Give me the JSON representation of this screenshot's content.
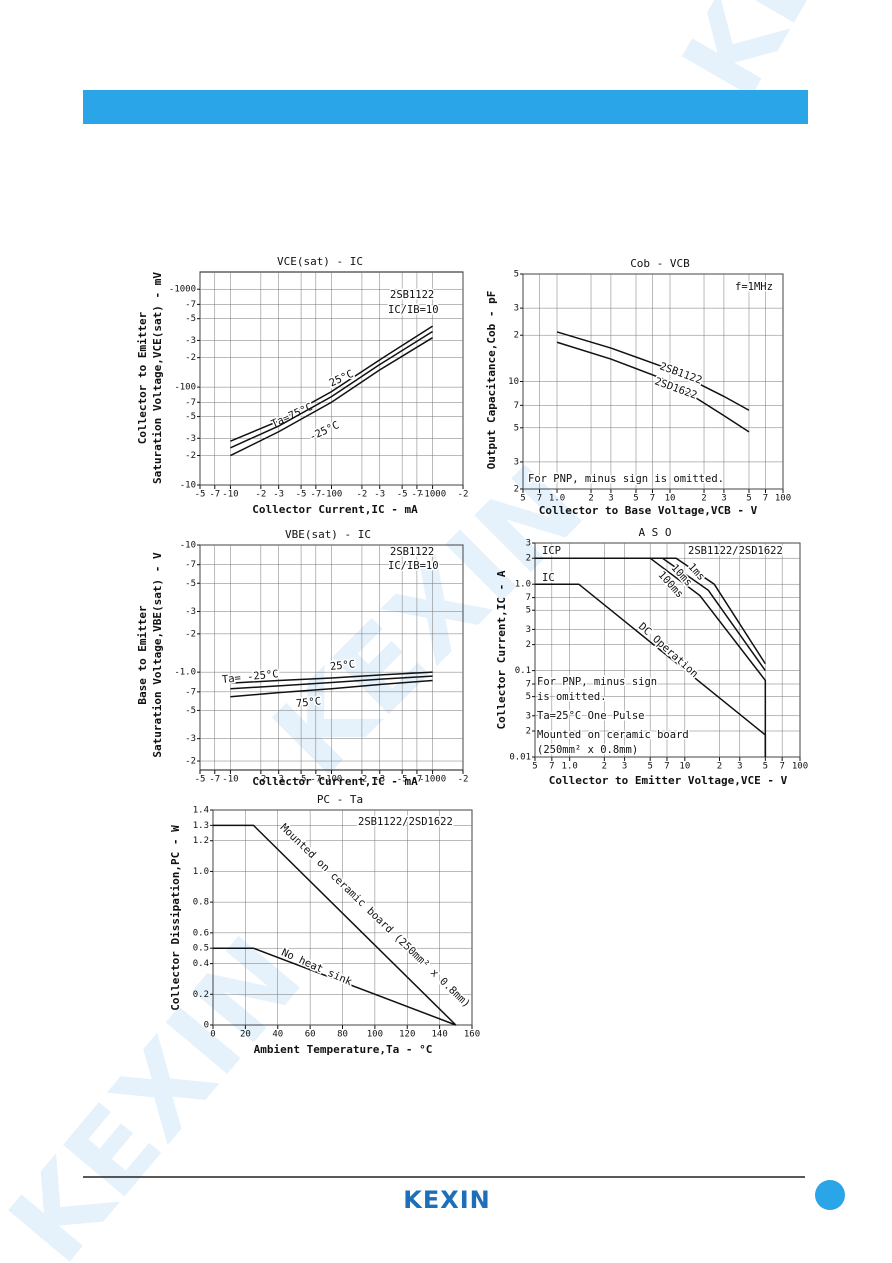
{
  "footer": {
    "logo": "KEXIN"
  },
  "watermark": "KEXIN",
  "chart_data": [
    {
      "type": "line",
      "title": "VCE(sat) - IC",
      "ylabel": [
        "Collector to Emitter",
        "Saturation Voltage,VCE(sat) - mV"
      ],
      "xlabel": "Collector Current,IC - mA",
      "xscale": "log",
      "yscale": "log",
      "grid": true,
      "xlim": [
        -5,
        -2000
      ],
      "ylim": [
        -10,
        -1500
      ],
      "xticks": [
        -5,
        -7,
        -10,
        {
          "value": -20,
          "label": "-2"
        },
        {
          "value": -30,
          "label": "-3"
        },
        {
          "value": -50,
          "label": "-5"
        },
        {
          "value": -70,
          "label": "-7"
        },
        -100,
        {
          "value": -200,
          "label": "-2"
        },
        {
          "value": -300,
          "label": "-3"
        },
        {
          "value": -500,
          "label": "-5"
        },
        {
          "value": -700,
          "label": "-7"
        },
        -1000,
        {
          "value": -2000,
          "label": "-2"
        }
      ],
      "yticks": [
        -1000,
        {
          "value": -700,
          "label": "-7"
        },
        {
          "value": -500,
          "label": "-5"
        },
        {
          "value": -300,
          "label": "-3"
        },
        {
          "value": -200,
          "label": "-2"
        },
        -100,
        {
          "value": -70,
          "label": "-7"
        },
        {
          "value": -50,
          "label": "-5"
        },
        {
          "value": -30,
          "label": "-3"
        },
        {
          "value": -20,
          "label": "-2"
        },
        -10
      ],
      "annotations": [
        "2SB1122",
        "IC/IB=10"
      ],
      "series": [
        {
          "name": "Ta=75°C",
          "color": "#111111",
          "x": [
            -10,
            -30,
            -100,
            -300,
            -1000
          ],
          "values": [
            -28,
            -45,
            -90,
            -190,
            -420
          ]
        },
        {
          "name": "25°C",
          "color": "#111111",
          "x": [
            -10,
            -30,
            -100,
            -300,
            -1000
          ],
          "values": [
            -24,
            -40,
            -80,
            -170,
            -370
          ]
        },
        {
          "name": "-25°C",
          "color": "#111111",
          "x": [
            -10,
            -30,
            -100,
            -300,
            -1000
          ],
          "values": [
            -20,
            -35,
            -70,
            -150,
            -320
          ]
        }
      ]
    },
    {
      "type": "line",
      "title": "Cob - VCB",
      "ylabel": [
        "Output Capacitance,Cob - pF"
      ],
      "xlabel": "Collector to Base Voltage,VCB - V",
      "xscale": "log",
      "yscale": "log",
      "grid": true,
      "xlim": [
        0.5,
        100
      ],
      "ylim": [
        2,
        50
      ],
      "xticks": [
        {
          "value": 0.5,
          "label": "5"
        },
        {
          "value": 0.7,
          "label": "7"
        },
        {
          "value": 1,
          "label": "1.0"
        },
        2,
        3,
        5,
        7,
        10,
        {
          "value": 20,
          "label": "2"
        },
        {
          "value": 30,
          "label": "3"
        },
        {
          "value": 50,
          "label": "5"
        },
        {
          "value": 70,
          "label": "7"
        },
        100
      ],
      "yticks": [
        {
          "value": 50,
          "label": "5"
        },
        {
          "value": 30,
          "label": "3"
        },
        {
          "value": 20,
          "label": "2"
        },
        10,
        7,
        5,
        3,
        2
      ],
      "annotations": [
        "f=1MHz",
        "For PNP, minus sign is omitted."
      ],
      "series": [
        {
          "name": "2SB1122",
          "color": "#111111",
          "x": [
            1,
            3,
            10,
            30,
            50
          ],
          "values": [
            21,
            16.5,
            12,
            8,
            6.5
          ]
        },
        {
          "name": "2SD1622",
          "color": "#111111",
          "x": [
            1,
            3,
            10,
            30,
            50
          ],
          "values": [
            18,
            14,
            10,
            6,
            4.7
          ]
        }
      ]
    },
    {
      "type": "line",
      "title": "VBE(sat) - IC",
      "ylabel": [
        "Base to Emitter",
        "Saturation Voltage,VBE(sat) - V"
      ],
      "xlabel": "Collector Current,IC - mA",
      "xscale": "log",
      "yscale": "log",
      "grid": true,
      "xlim": [
        -5,
        -2000
      ],
      "ylim": [
        -0.17,
        -10
      ],
      "xticks": [
        -5,
        -7,
        -10,
        {
          "value": -20,
          "label": "-2"
        },
        {
          "value": -30,
          "label": "-3"
        },
        {
          "value": -50,
          "label": "-5"
        },
        {
          "value": -70,
          "label": "-7"
        },
        -100,
        {
          "value": -200,
          "label": "-2"
        },
        {
          "value": -300,
          "label": "-3"
        },
        {
          "value": -500,
          "label": "-5"
        },
        {
          "value": -700,
          "label": "-7"
        },
        -1000,
        {
          "value": -2000,
          "label": "-2"
        }
      ],
      "yticks": [
        -10,
        -7,
        -5,
        -3,
        -2,
        {
          "value": -1,
          "label": "-1.0"
        },
        {
          "value": -0.7,
          "label": "-7"
        },
        {
          "value": -0.5,
          "label": "-5"
        },
        {
          "value": -0.3,
          "label": "-3"
        },
        {
          "value": -0.2,
          "label": "-2"
        }
      ],
      "annotations": [
        "2SB1122",
        "IC/IB=10"
      ],
      "series": [
        {
          "name": "Ta= -25°C",
          "color": "#111111",
          "x": [
            -10,
            -30,
            -100,
            -300,
            -1000
          ],
          "values": [
            -0.82,
            -0.86,
            -0.9,
            -0.95,
            -1.0
          ]
        },
        {
          "name": "25°C",
          "color": "#111111",
          "x": [
            -10,
            -30,
            -100,
            -300,
            -1000
          ],
          "values": [
            -0.74,
            -0.78,
            -0.83,
            -0.88,
            -0.93
          ]
        },
        {
          "name": "75°C",
          "color": "#111111",
          "x": [
            -10,
            -30,
            -100,
            -300,
            -1000
          ],
          "values": [
            -0.64,
            -0.69,
            -0.74,
            -0.8,
            -0.86
          ]
        }
      ]
    },
    {
      "type": "line",
      "title": "A S O",
      "ylabel": [
        "Collector Current,IC - A"
      ],
      "xlabel": "Collector to Emitter Voltage,VCE - V",
      "xscale": "log",
      "yscale": "log",
      "grid": true,
      "xlim": [
        0.5,
        100
      ],
      "ylim": [
        0.01,
        3
      ],
      "xticks": [
        {
          "value": 0.5,
          "label": "5"
        },
        {
          "value": 0.7,
          "label": "7"
        },
        {
          "value": 1,
          "label": "1.0"
        },
        2,
        3,
        5,
        7,
        10,
        {
          "value": 20,
          "label": "2"
        },
        {
          "value": 30,
          "label": "3"
        },
        {
          "value": 50,
          "label": "5"
        },
        {
          "value": 70,
          "label": "7"
        },
        100
      ],
      "yticks": [
        3,
        2,
        {
          "value": 1,
          "label": "1.0"
        },
        {
          "value": 0.7,
          "label": "7"
        },
        {
          "value": 0.5,
          "label": "5"
        },
        {
          "value": 0.3,
          "label": "3"
        },
        {
          "value": 0.2,
          "label": "2"
        },
        0.1,
        {
          "value": 0.07,
          "label": "7"
        },
        {
          "value": 0.05,
          "label": "5"
        },
        {
          "value": 0.03,
          "label": "3"
        },
        {
          "value": 0.02,
          "label": "2"
        },
        0.01
      ],
      "annotations": [
        "ICP",
        "IC",
        "2SB1122/2SD1622",
        "For PNP, minus sign",
        "is omitted.",
        "Ta=25°C One Pulse",
        "Mounted on ceramic board",
        "(250mm² x 0.8mm)"
      ],
      "series": [
        {
          "name": "DC Operation",
          "color": "#111111",
          "x": [
            0.5,
            1.2,
            50,
            50
          ],
          "values": [
            1,
            1,
            0.018,
            0.01
          ]
        },
        {
          "name": "100ms",
          "color": "#111111",
          "x": [
            0.5,
            5,
            13.5,
            50,
            50
          ],
          "values": [
            2,
            2,
            0.74,
            0.077,
            0.01
          ]
        },
        {
          "name": "10ms",
          "color": "#111111",
          "x": [
            5,
            6.4,
            16,
            50
          ],
          "values": [
            2,
            2,
            0.85,
            0.1
          ]
        },
        {
          "name": "1ms",
          "color": "#111111",
          "x": [
            6.4,
            8.4,
            18,
            50
          ],
          "values": [
            2,
            2,
            1,
            0.12
          ]
        }
      ]
    },
    {
      "type": "line",
      "title": "PC - Ta",
      "ylabel": [
        "Collector Dissipation,PC - W"
      ],
      "xlabel": "Ambient Temperature,Ta - °C",
      "xscale": "linear",
      "yscale": "linear",
      "grid": true,
      "xlim": [
        0,
        160
      ],
      "ylim": [
        0,
        1.4
      ],
      "xticks": [
        0,
        20,
        40,
        60,
        80,
        100,
        120,
        140,
        160
      ],
      "yticks": [
        1.4,
        1.3,
        1.2,
        {
          "value": 1,
          "label": "1.0"
        },
        0.8,
        0.6,
        0.5,
        0.4,
        0.2,
        0
      ],
      "annotations": [
        "2SB1122/2SD1622"
      ],
      "series": [
        {
          "name": "Mounted on ceramic board (250mm² x 0.8mm)",
          "color": "#111111",
          "x": [
            0,
            25,
            150
          ],
          "values": [
            1.3,
            1.3,
            0
          ]
        },
        {
          "name": "No heat sink",
          "color": "#111111",
          "x": [
            0,
            25,
            150
          ],
          "values": [
            0.5,
            0.5,
            0
          ]
        }
      ]
    }
  ]
}
